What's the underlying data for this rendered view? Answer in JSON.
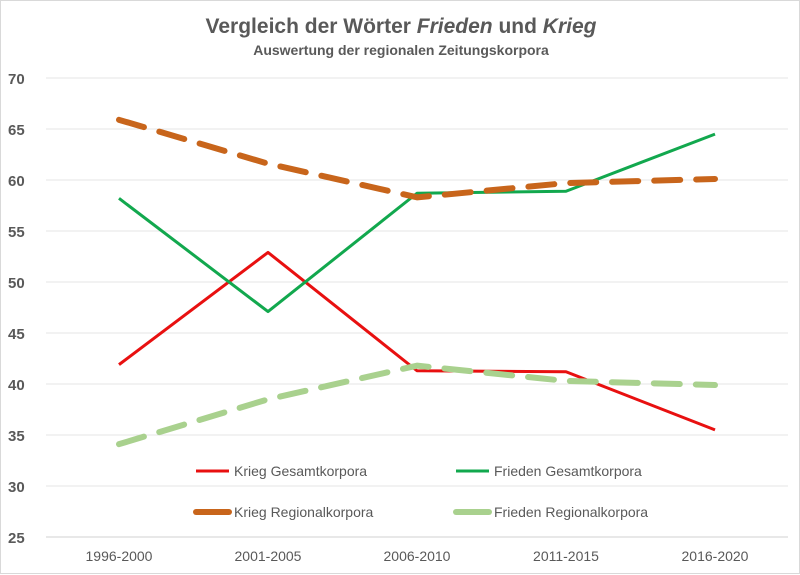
{
  "chart_data": {
    "type": "line",
    "title_parts": [
      "Vergleich der Wörter ",
      "Frieden",
      " und ",
      "Krieg"
    ],
    "subtitle": "Auswertung der regionalen Zeitungskorpora",
    "categories": [
      "1996-2000",
      "2001-2005",
      "2006-2010",
      "2011-2015",
      "2016-2020"
    ],
    "ylim": [
      25,
      70
    ],
    "yticks": [
      25,
      30,
      35,
      40,
      45,
      50,
      55,
      60,
      65,
      70
    ],
    "grid": true,
    "legend_placement": "bottom-inside",
    "series": [
      {
        "name": "Krieg Gesamtkorpora",
        "values": [
          41.9,
          52.9,
          41.3,
          41.2,
          35.5
        ],
        "color": "#e81010",
        "dashed": false
      },
      {
        "name": "Frieden Gesamtkorpora",
        "values": [
          58.2,
          47.1,
          58.7,
          58.9,
          64.5
        ],
        "color": "#12a84e",
        "dashed": false
      },
      {
        "name": "Krieg Regionalkorpora",
        "values": [
          65.9,
          61.6,
          58.3,
          59.7,
          60.1
        ],
        "color": "#c8651b",
        "dashed": true
      },
      {
        "name": "Frieden Regionalkorpora",
        "values": [
          34.1,
          38.5,
          41.8,
          40.3,
          39.9
        ],
        "color": "#a9d18e",
        "dashed": true
      }
    ]
  }
}
